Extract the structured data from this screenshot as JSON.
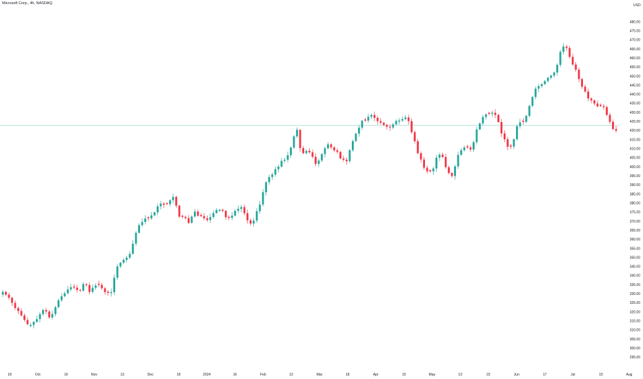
{
  "title": "Microsoft Corp., 4h, NASDAQ",
  "chart_data": {
    "type": "candlestick",
    "currency": "USD",
    "up_color": "#26a69a",
    "down_color": "#f23645",
    "price_line": 422.8,
    "price_line_color": "#26a69a",
    "ylim": [
      294,
      484
    ],
    "yticks": [
      295,
      300,
      305,
      310,
      315,
      320,
      325,
      330,
      335,
      340,
      345,
      350,
      355,
      360,
      365,
      370,
      375,
      380,
      385,
      390,
      395,
      400,
      405,
      410,
      415,
      420,
      425,
      430,
      435,
      440,
      445,
      450,
      455,
      460,
      465,
      470,
      475,
      480
    ],
    "xticks": [
      "18",
      "Oct",
      "16",
      "Nov",
      "13",
      "Dec",
      "18",
      "2024",
      "16",
      "Feb",
      "12",
      "Mar",
      "18",
      "Apr",
      "15",
      "May",
      "13",
      "22",
      "Jun",
      "17",
      "Jul",
      "15",
      "Aug"
    ],
    "closes": [
      331.0,
      329.5,
      327.8,
      325.0,
      322.1,
      320.5,
      318.0,
      315.5,
      313.2,
      312.8,
      314.5,
      316.0,
      318.8,
      321.0,
      320.2,
      316.9,
      318.8,
      322.6,
      326.4,
      328.6,
      330.3,
      332.4,
      333.6,
      333.4,
      332.1,
      331.7,
      335.3,
      334.8,
      331.0,
      333.3,
      334.6,
      334.9,
      333.0,
      330.9,
      330.5,
      330.9,
      338.8,
      345.1,
      347.1,
      348.7,
      349.9,
      352.0,
      357.6,
      363.6,
      367.8,
      369.6,
      371.5,
      371.6,
      373.2,
      374.9,
      378.2,
      379.7,
      379.1,
      379.4,
      381.6,
      383.4,
      378.6,
      372.5,
      372.4,
      371.7,
      369.1,
      372.6,
      375.3,
      373.0,
      372.8,
      371.6,
      370.6,
      372.3,
      374.5,
      376.2,
      376.3,
      375.7,
      372.2,
      371.8,
      373.1,
      375.7,
      376.8,
      377.8,
      374.4,
      370.5,
      368.7,
      370.3,
      375.5,
      379.2,
      386.0,
      391.5,
      394.4,
      395.7,
      398.7,
      400.1,
      403.3,
      403.9,
      406.4,
      410.6,
      416.8,
      420.4,
      410.3,
      407.5,
      408.8,
      408.0,
      405.5,
      401.6,
      403.5,
      407.0,
      410.2,
      412.4,
      410.7,
      409.1,
      408.2,
      404.6,
      403.9,
      403.1,
      409.2,
      414.2,
      418.3,
      421.6,
      425.4,
      425.5,
      427.6,
      428.6,
      427.0,
      425.2,
      424.3,
      423.1,
      422.1,
      421.7,
      423.4,
      425.3,
      425.5,
      426.3,
      427.2,
      425.2,
      419.1,
      414.1,
      407.5,
      404.0,
      399.5,
      397.5,
      397.5,
      399.1,
      405.0,
      406.7,
      405.4,
      399.8,
      396.6,
      394.9,
      400.2,
      406.6,
      409.1,
      410.7,
      410.7,
      409.5,
      413.6,
      420.6,
      423.9,
      427.5,
      428.9,
      429.2,
      429.8,
      428.6,
      424.7,
      418.4,
      415.2,
      411.0,
      411.1,
      415.2,
      422.4,
      424.5,
      424.8,
      428.1,
      433.6,
      438.5,
      443.1,
      444.5,
      445.6,
      447.3,
      449.1,
      450.3,
      452.0,
      456.2,
      463.4,
      466.3,
      465.5,
      460.6,
      456.4,
      453.6,
      448.4,
      444.2,
      441.5,
      437.7,
      436.6,
      434.9,
      433.3,
      433.5,
      432.9,
      428.6,
      424.8,
      420.8,
      419.9
    ]
  }
}
